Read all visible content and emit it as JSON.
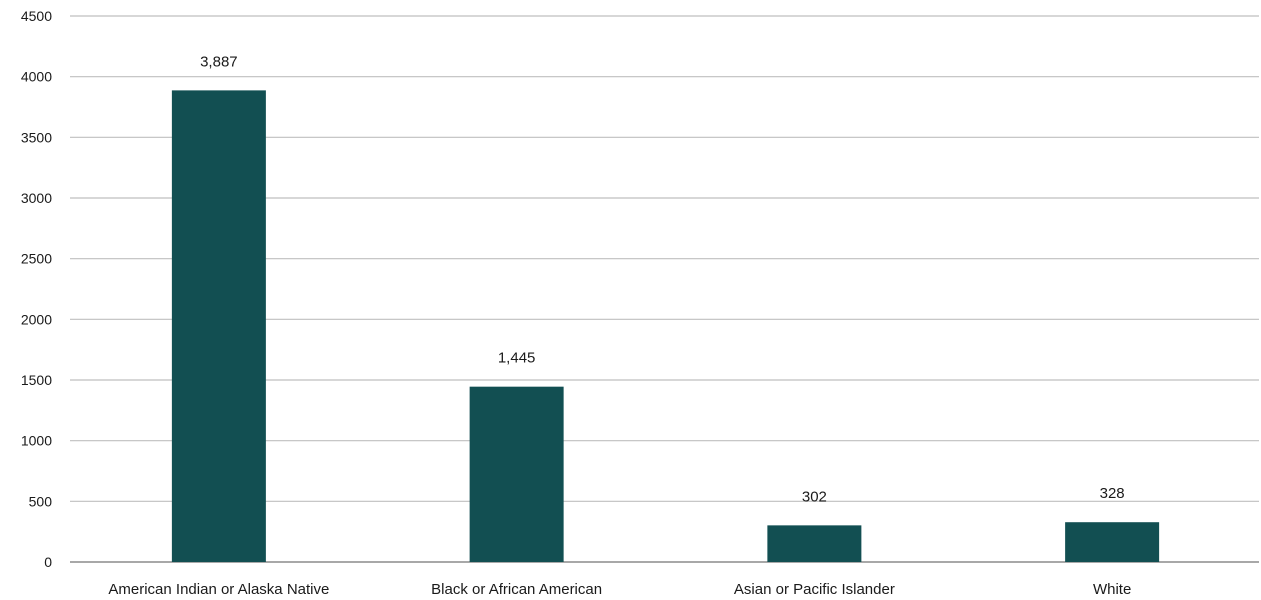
{
  "chart_data": {
    "type": "bar",
    "categories": [
      "American Indian or Alaska Native",
      "Black or African American",
      "Asian or Pacific Islander",
      "White"
    ],
    "values": [
      3887,
      1445,
      302,
      328
    ],
    "data_labels": [
      "3,887",
      "1,445",
      "302",
      "328"
    ],
    "title": "",
    "xlabel": "",
    "ylabel": "",
    "ylim": [
      0,
      4500
    ],
    "yticks": [
      0,
      500,
      1000,
      1500,
      2000,
      2500,
      3000,
      3500,
      4000,
      4500
    ],
    "grid": true,
    "legend": "none",
    "colors": {
      "bar": "#124f52",
      "grid": "#bfbfbf",
      "axis": "#8c8c8c"
    }
  }
}
